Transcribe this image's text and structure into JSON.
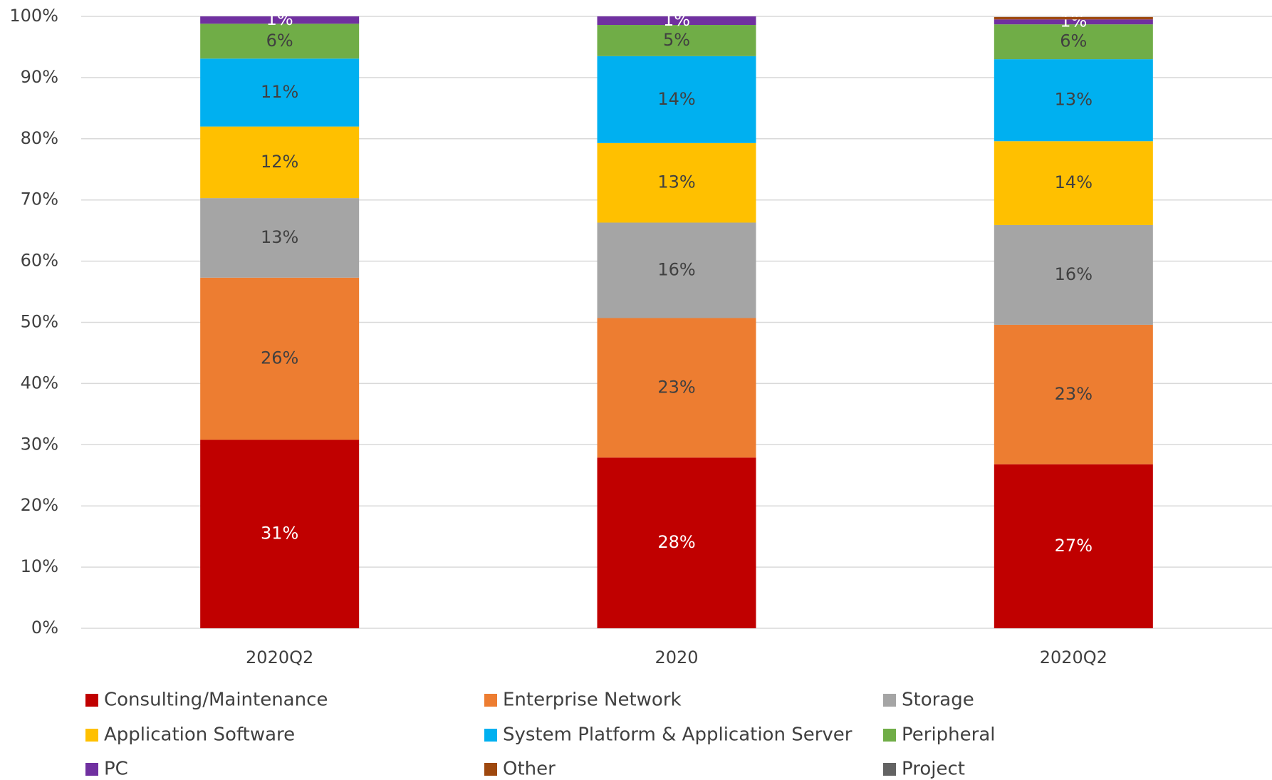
{
  "chart_data": {
    "type": "stacked_bar",
    "categories": [
      "2020Q2",
      "2020",
      "2020Q2"
    ],
    "series": [
      {
        "name": "Consulting/Maintenance",
        "color": "#c00000",
        "label_color": "#ffffff",
        "values": [
          30.8,
          27.9,
          26.8
        ],
        "value_labels": [
          "31%",
          "28%",
          "27%"
        ]
      },
      {
        "name": "Enterprise Network",
        "color": "#ed7d31",
        "label_color": "#404040",
        "values": [
          26.5,
          22.8,
          22.8
        ],
        "value_labels": [
          "26%",
          "23%",
          "23%"
        ]
      },
      {
        "name": "Storage",
        "color": "#a5a5a5",
        "label_color": "#404040",
        "values": [
          13.0,
          15.6,
          16.3
        ],
        "value_labels": [
          "13%",
          "16%",
          "16%"
        ]
      },
      {
        "name": "Application Software",
        "color": "#ffc000",
        "label_color": "#404040",
        "values": [
          11.7,
          13.0,
          13.7
        ],
        "value_labels": [
          "12%",
          "13%",
          "14%"
        ]
      },
      {
        "name": "System Platform & Application Server",
        "color": "#00b0f0",
        "label_color": "#404040",
        "values": [
          11.1,
          14.2,
          13.4
        ],
        "value_labels": [
          "11%",
          "14%",
          "13%"
        ]
      },
      {
        "name": "Peripheral",
        "color": "#70ad47",
        "label_color": "#404040",
        "values": [
          5.7,
          5.1,
          5.7
        ],
        "value_labels": [
          "6%",
          "5%",
          "6%"
        ]
      },
      {
        "name": "PC",
        "color": "#7030a0",
        "label_color": "#ffffff",
        "values": [
          1.2,
          1.4,
          0.8
        ],
        "value_labels": [
          "1%",
          "1%",
          "1%"
        ]
      },
      {
        "name": "Other",
        "color": "#9e480e",
        "label_color": "#404040",
        "values": [
          0,
          0,
          0.4
        ],
        "value_labels": [
          null,
          null,
          null
        ]
      },
      {
        "name": "Project",
        "color": "#636363",
        "label_color": "#404040",
        "values": [
          0,
          0,
          0
        ],
        "value_labels": [
          null,
          null,
          null
        ]
      }
    ],
    "ylim": [
      0,
      100
    ],
    "yticks": [
      {
        "value": 0,
        "label": "0%"
      },
      {
        "value": 10,
        "label": "10%"
      },
      {
        "value": 20,
        "label": "20%"
      },
      {
        "value": 30,
        "label": "30%"
      },
      {
        "value": 40,
        "label": "40%"
      },
      {
        "value": 50,
        "label": "50%"
      },
      {
        "value": 60,
        "label": "60%"
      },
      {
        "value": 70,
        "label": "70%"
      },
      {
        "value": 80,
        "label": "80%"
      },
      {
        "value": 90,
        "label": "90%"
      },
      {
        "value": 100,
        "label": "100%"
      }
    ],
    "grid": true,
    "legend": "bottom"
  }
}
